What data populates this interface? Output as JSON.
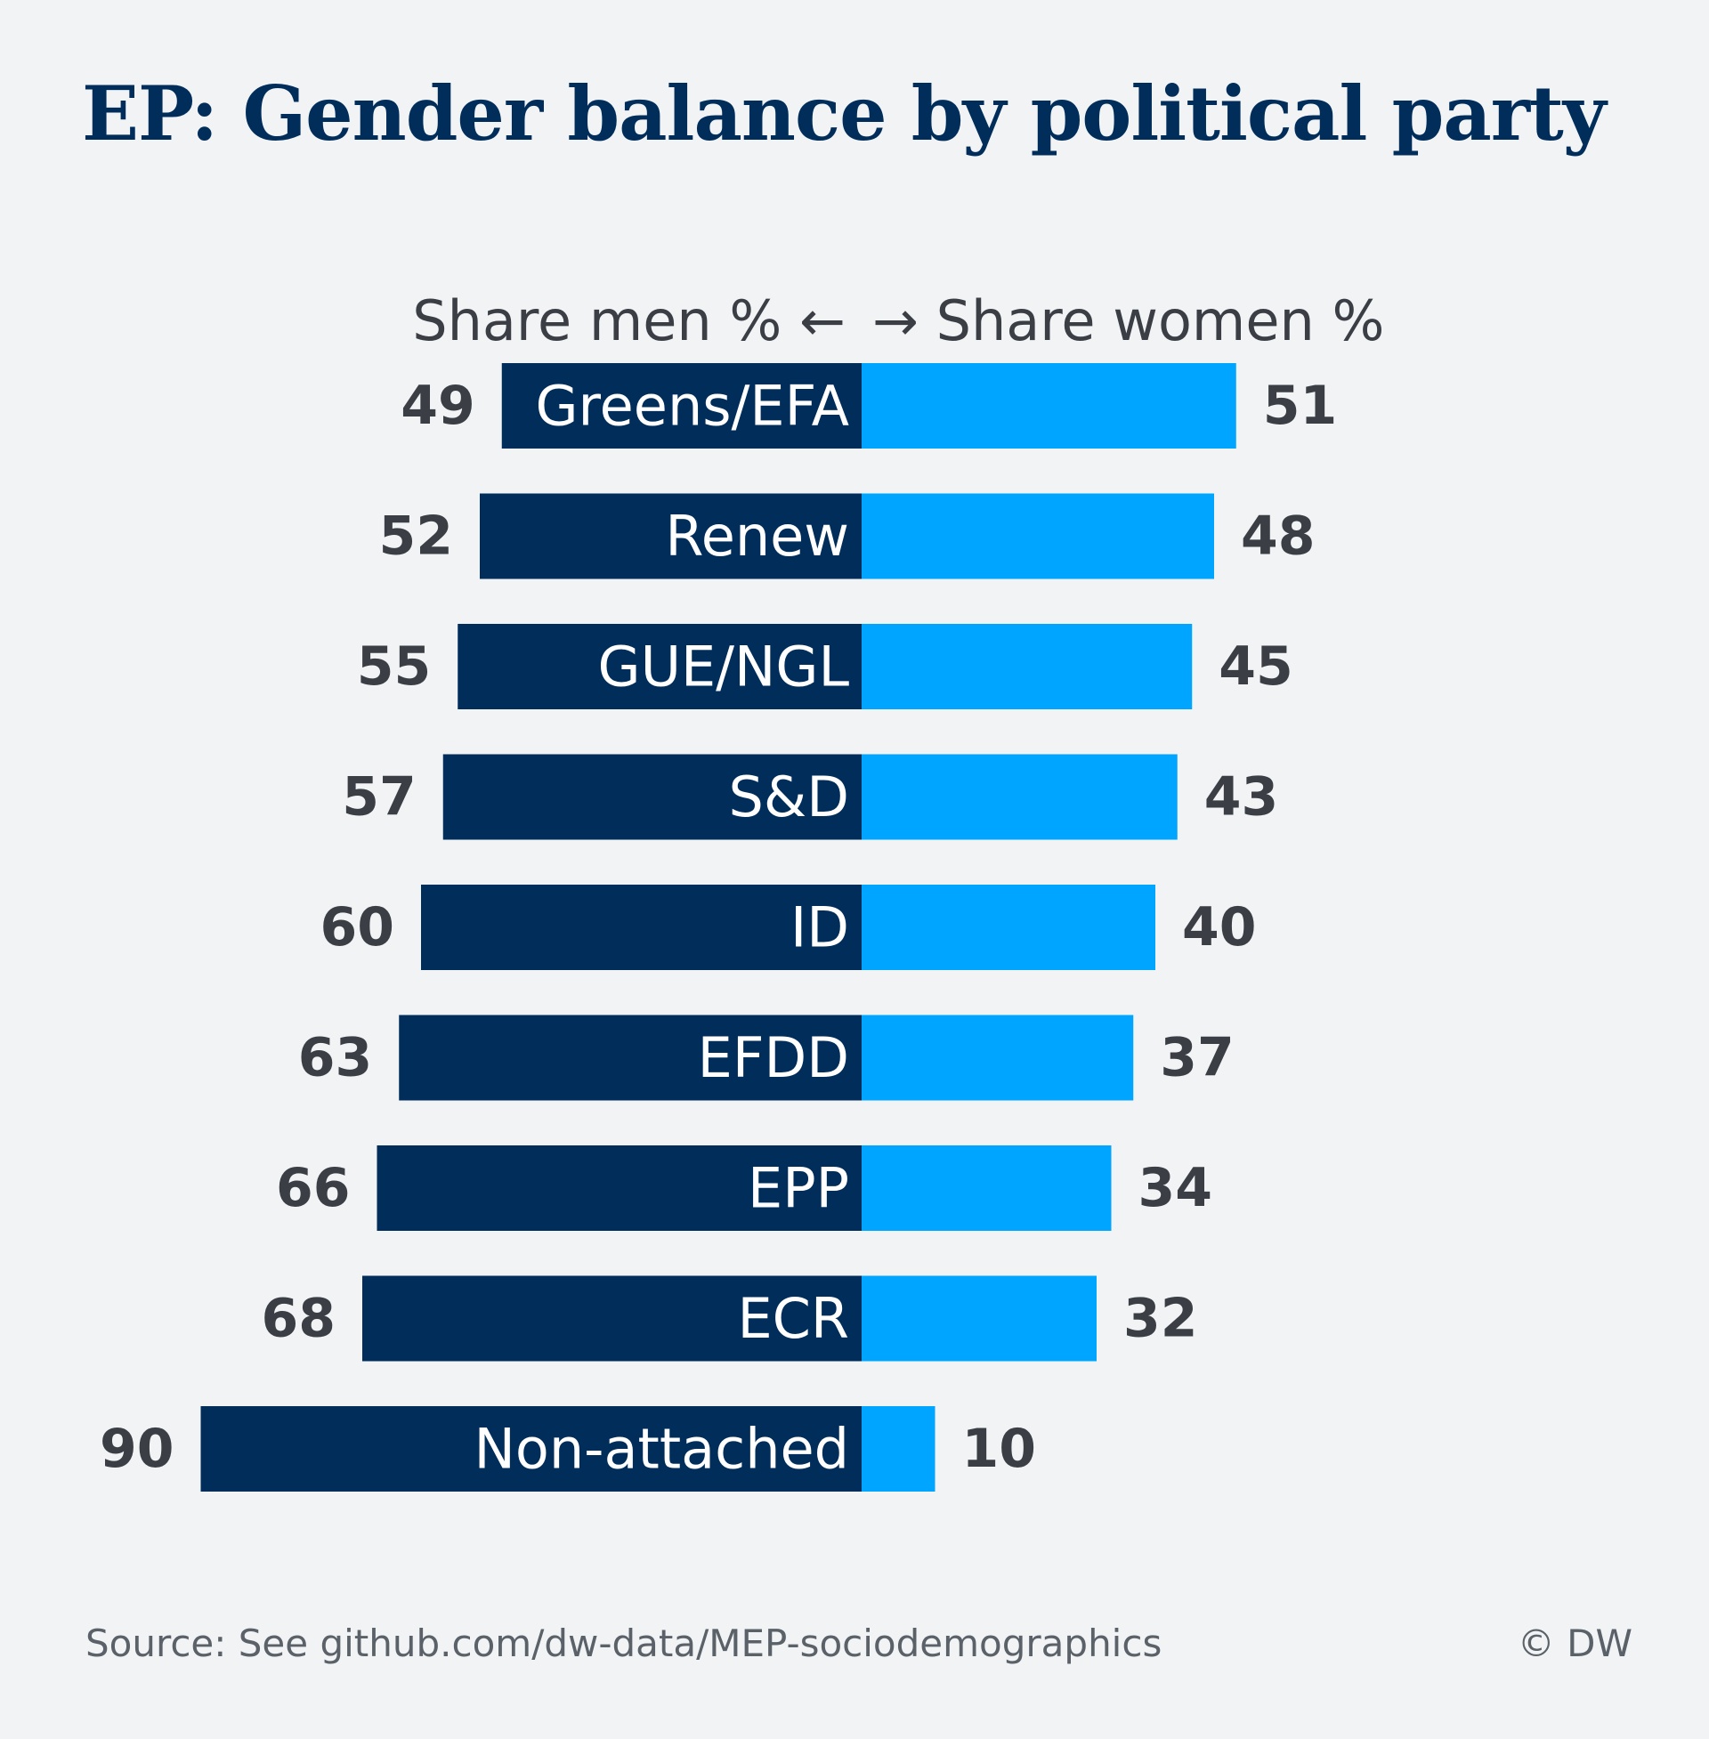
{
  "title": "EP: Gender balance by political party",
  "source": "Source: See github.com/dw-data/MEP-sociodemographics",
  "credit": "© DW",
  "colors": {
    "background": "#f1f3f5",
    "title": "#002d5a",
    "men": "#002d5a",
    "women": "#00a5ff",
    "value_text": "#3b3f45",
    "axis_text": "#3b3f45",
    "label_text": "#ffffff"
  },
  "chart_data": {
    "type": "bar",
    "orientation": "horizontal-diverging",
    "header": {
      "left": "Share men % ←",
      "right": "→ Share women %"
    },
    "categories": [
      "Greens/EFA",
      "Renew",
      "GUE/NGL",
      "S&D",
      "ID",
      "EFDD",
      "EPP",
      "ECR",
      "Non-attached"
    ],
    "series": [
      {
        "name": "Share men %",
        "values": [
          49,
          52,
          55,
          57,
          60,
          63,
          66,
          68,
          90
        ]
      },
      {
        "name": "Share women %",
        "values": [
          51,
          48,
          45,
          43,
          40,
          37,
          34,
          32,
          10
        ]
      }
    ],
    "xlim": [
      0,
      100
    ],
    "grid": false,
    "legend": "none"
  }
}
